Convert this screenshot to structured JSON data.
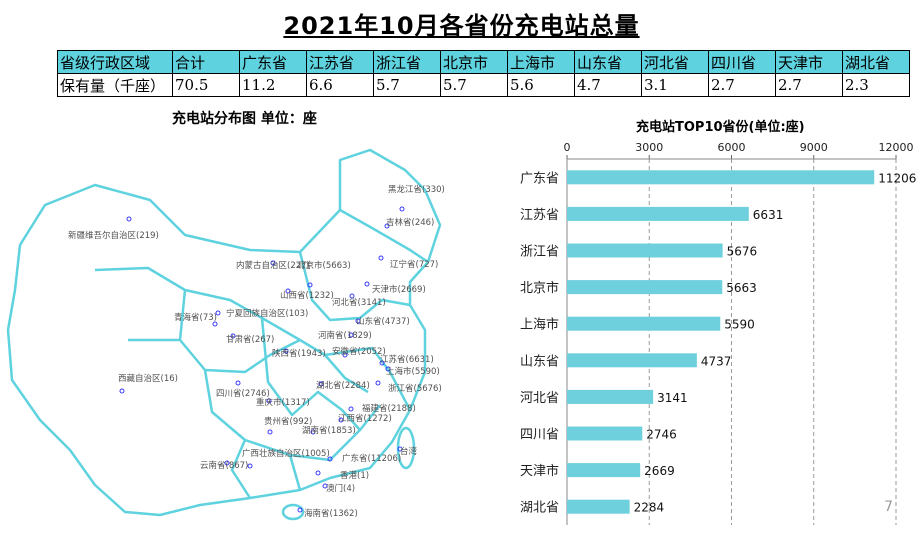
{
  "page_title": "2021年10月各省份充电站总量",
  "summary_table": {
    "header": [
      "省级行政区域",
      "合计",
      "广东省",
      "江苏省",
      "浙江省",
      "北京市",
      "上海市",
      "山东省",
      "河北省",
      "四川省",
      "天津市",
      "湖北省"
    ],
    "row": [
      "保有量（千座）",
      "70.5",
      "11.2",
      "6.6",
      "5.7",
      "5.7",
      "5.6",
      "4.7",
      "3.1",
      "2.7",
      "2.7",
      "2.3"
    ]
  },
  "map": {
    "title": "充电站分布图   单位：座",
    "labels": [
      "黑龙江省(330)",
      "吉林省(246)",
      "辽宁省(727)",
      "内蒙古自治区(227)",
      "北京市(5663)",
      "天津市(2669)",
      "新疆维吾尔自治区(219)",
      "山西省(1232)",
      "河北省(3141)",
      "山东省(4737)",
      "青海省(73)",
      "宁夏回族自治区(103)",
      "甘肃省(267)",
      "河南省(1829)",
      "陕西省(1943)",
      "安徽省(2052)",
      "江苏省(6631)",
      "上海市(5590)",
      "西藏自治区(16)",
      "湖北省(2284)",
      "浙江省(5676)",
      "四川省(2746)",
      "重庆市(1317)",
      "福建省(2188)",
      "江西省(1272)",
      "贵州省(992)",
      "湖南省(1853)",
      "广西壮族自治区(1005)",
      "广东省(11206)",
      "台湾",
      "云南省(867)",
      "香港(1)",
      "澳门(4)",
      "海南省(1362)"
    ],
    "outline_color": "#5ed2de",
    "marker_color": "#3a3aff"
  },
  "chart_data": {
    "type": "bar",
    "orientation": "horizontal",
    "title": "充电站TOP10省份(单位:座)",
    "categories": [
      "广东省",
      "江苏省",
      "浙江省",
      "北京市",
      "上海市",
      "山东省",
      "河北省",
      "四川省",
      "天津市",
      "湖北省"
    ],
    "values": [
      11206,
      6631,
      5676,
      5663,
      5590,
      4737,
      3141,
      2746,
      2669,
      2284
    ],
    "xlim": [
      0,
      12000
    ],
    "xticks": [
      "0",
      "3000",
      "6000",
      "9000",
      "12000"
    ],
    "grid": "vertical dashed",
    "bar_color": "#6dd0dc"
  },
  "page_number": "7"
}
